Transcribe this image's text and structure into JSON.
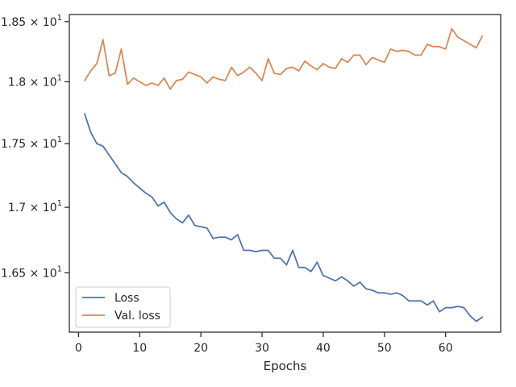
{
  "chart_data": {
    "type": "line",
    "xlabel": "Epochs",
    "ylabel": "",
    "xlim": [
      -1.5,
      69
    ],
    "ylim": [
      16.06,
      18.56
    ],
    "x_ticks": [
      0,
      10,
      20,
      30,
      40,
      50,
      60
    ],
    "x_tick_labels": [
      "0",
      "10",
      "20",
      "30",
      "40",
      "50",
      "60"
    ],
    "y_ticks": [
      16.5,
      17.0,
      17.5,
      18.0,
      18.5
    ],
    "y_tick_labels": [
      {
        "mantissa": "1.65",
        "base": "10",
        "exp": "1"
      },
      {
        "mantissa": "1.7",
        "base": "10",
        "exp": "1"
      },
      {
        "mantissa": "1.75",
        "base": "10",
        "exp": "1"
      },
      {
        "mantissa": "1.8",
        "base": "10",
        "exp": "1"
      },
      {
        "mantissa": "1.85",
        "base": "10",
        "exp": "1"
      }
    ],
    "y_scale": "log",
    "grid": false,
    "legend_position": "lower-left",
    "series": [
      {
        "name": "Loss",
        "color": "#4c72b0",
        "x": [
          1,
          2,
          3,
          4,
          5,
          6,
          7,
          8,
          9,
          10,
          11,
          12,
          13,
          14,
          15,
          16,
          17,
          18,
          19,
          20,
          21,
          22,
          23,
          24,
          25,
          26,
          27,
          28,
          29,
          30,
          31,
          32,
          33,
          34,
          35,
          36,
          37,
          38,
          39,
          40,
          41,
          42,
          43,
          44,
          45,
          46,
          47,
          48,
          49,
          50,
          51,
          52,
          53,
          54,
          55,
          56,
          57,
          58,
          59,
          60,
          61,
          62,
          63,
          64,
          65,
          66
        ],
        "values": [
          17.74,
          17.59,
          17.5,
          17.48,
          17.41,
          17.34,
          17.27,
          17.24,
          17.19,
          17.15,
          17.11,
          17.08,
          17.01,
          17.04,
          16.96,
          16.91,
          16.88,
          16.94,
          16.86,
          16.85,
          16.84,
          16.76,
          16.77,
          16.77,
          16.75,
          16.79,
          16.67,
          16.67,
          16.66,
          16.67,
          16.67,
          16.61,
          16.61,
          16.56,
          16.67,
          16.54,
          16.54,
          16.51,
          16.58,
          16.48,
          16.46,
          16.44,
          16.47,
          16.44,
          16.4,
          16.43,
          16.38,
          16.37,
          16.35,
          16.35,
          16.34,
          16.35,
          16.33,
          16.29,
          16.29,
          16.29,
          16.26,
          16.29,
          16.21,
          16.24,
          16.24,
          16.25,
          16.24,
          16.18,
          16.14,
          16.17
        ]
      },
      {
        "name": "Val. loss",
        "color": "#dd8452",
        "x": [
          1,
          2,
          3,
          4,
          5,
          6,
          7,
          8,
          9,
          10,
          11,
          12,
          13,
          14,
          15,
          16,
          17,
          18,
          19,
          20,
          21,
          22,
          23,
          24,
          25,
          26,
          27,
          28,
          29,
          30,
          31,
          32,
          33,
          34,
          35,
          36,
          37,
          38,
          39,
          40,
          41,
          42,
          43,
          44,
          45,
          46,
          47,
          48,
          49,
          50,
          51,
          52,
          53,
          54,
          55,
          56,
          57,
          58,
          59,
          60,
          61,
          62,
          63,
          64,
          65,
          66
        ],
        "values": [
          18.01,
          18.09,
          18.15,
          18.35,
          18.05,
          18.07,
          18.27,
          17.98,
          18.03,
          18.0,
          17.97,
          17.99,
          17.97,
          18.03,
          17.94,
          18.01,
          18.02,
          18.08,
          18.06,
          18.04,
          17.99,
          18.04,
          18.02,
          18.01,
          18.12,
          18.05,
          18.08,
          18.12,
          18.07,
          18.01,
          18.19,
          18.07,
          18.06,
          18.11,
          18.12,
          18.09,
          18.17,
          18.13,
          18.1,
          18.15,
          18.12,
          18.11,
          18.19,
          18.16,
          18.22,
          18.22,
          18.14,
          18.2,
          18.18,
          18.16,
          18.27,
          18.25,
          18.26,
          18.25,
          18.22,
          18.22,
          18.31,
          18.29,
          18.29,
          18.27,
          18.44,
          18.37,
          18.34,
          18.31,
          18.28,
          18.38
        ]
      }
    ]
  }
}
